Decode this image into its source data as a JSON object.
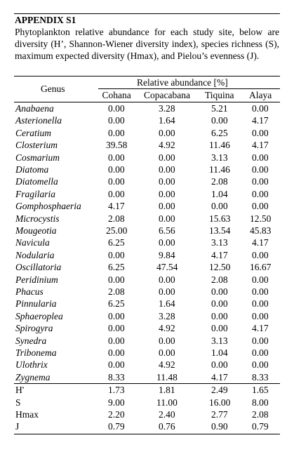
{
  "title": "APPENDIX S1",
  "caption": "Phytoplankton relative abundance for each study site, below are diversity (H’, Shannon-Wiener diversity index), species richness (S), maximum expected diversity (Hmax), and Pielou’s evenness (J).",
  "table": {
    "genus_header": "Genus",
    "group_header": "Relative abundance [%]",
    "columns": [
      "Cohana",
      "Copacabana",
      "Tiquina",
      "Alaya"
    ],
    "rows": [
      [
        "Anabaena",
        "0.00",
        "3.28",
        "5.21",
        "0.00"
      ],
      [
        "Asterionella",
        "0.00",
        "1.64",
        "0.00",
        "4.17"
      ],
      [
        "Ceratium",
        "0.00",
        "0.00",
        "6.25",
        "0.00"
      ],
      [
        "Closterium",
        "39.58",
        "4.92",
        "11.46",
        "4.17"
      ],
      [
        "Cosmarium",
        "0.00",
        "0.00",
        "3.13",
        "0.00"
      ],
      [
        "Diatoma",
        "0.00",
        "0.00",
        "11.46",
        "0.00"
      ],
      [
        "Diatomella",
        "0.00",
        "0.00",
        "2.08",
        "0.00"
      ],
      [
        "Fragilaria",
        "0.00",
        "0.00",
        "1.04",
        "0.00"
      ],
      [
        "Gomphosphaeria",
        "4.17",
        "0.00",
        "0.00",
        "0.00"
      ],
      [
        "Microcystis",
        "2.08",
        "0.00",
        "15.63",
        "12.50"
      ],
      [
        "Mougeotia",
        "25.00",
        "6.56",
        "13.54",
        "45.83"
      ],
      [
        "Navicula",
        "6.25",
        "0.00",
        "3.13",
        "4.17"
      ],
      [
        "Nodularia",
        "0.00",
        "9.84",
        "4.17",
        "0.00"
      ],
      [
        "Oscillatoria",
        "6.25",
        "47.54",
        "12.50",
        "16.67"
      ],
      [
        "Peridinium",
        "0.00",
        "0.00",
        "2.08",
        "0.00"
      ],
      [
        "Phacus",
        "2.08",
        "0.00",
        "0.00",
        "0.00"
      ],
      [
        "Pinnularia",
        "6.25",
        "1.64",
        "0.00",
        "0.00"
      ],
      [
        "Sphaeroplea",
        "0.00",
        "3.28",
        "0.00",
        "0.00"
      ],
      [
        "Spirogyra",
        "0.00",
        "4.92",
        "0.00",
        "4.17"
      ],
      [
        "Synedra",
        "0.00",
        "0.00",
        "3.13",
        "0.00"
      ],
      [
        "Tribonema",
        "0.00",
        "0.00",
        "1.04",
        "0.00"
      ],
      [
        "Ulothrix",
        "0.00",
        "4.92",
        "0.00",
        "0.00"
      ],
      [
        "Zygnema",
        "8.33",
        "11.48",
        "4.17",
        "8.33"
      ]
    ],
    "summary_rows": [
      [
        "H'",
        "1.73",
        "1.81",
        "2.49",
        "1.65"
      ],
      [
        "S",
        "9.00",
        "11.00",
        "16.00",
        "8.00"
      ],
      [
        "Hmax",
        "2.20",
        "2.40",
        "2.77",
        "2.08"
      ],
      [
        "J",
        "0.79",
        "0.76",
        "0.90",
        "0.79"
      ]
    ]
  }
}
